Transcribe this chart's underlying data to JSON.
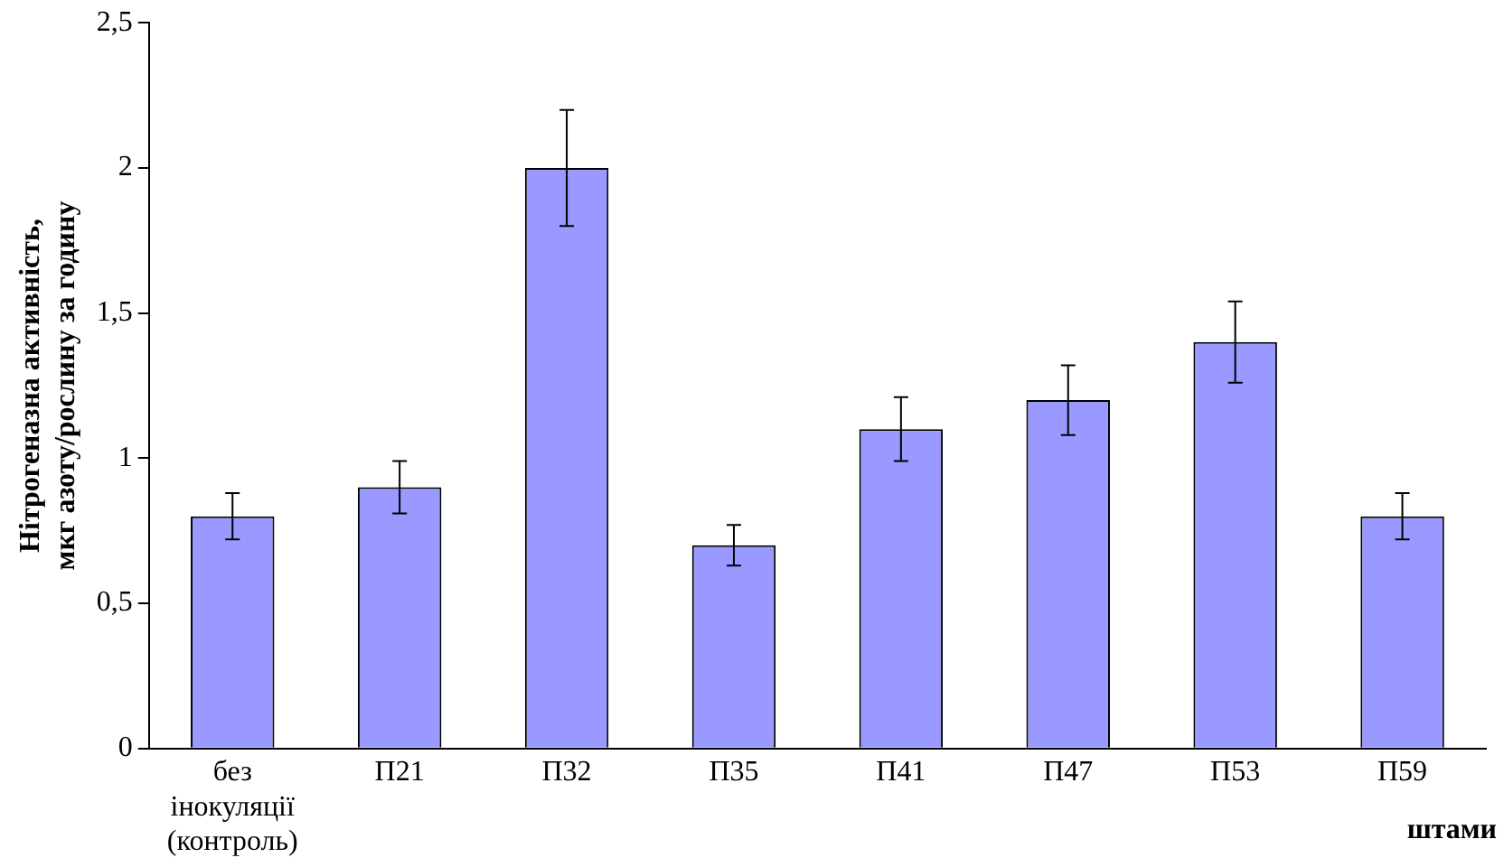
{
  "chart_data": {
    "type": "bar",
    "xlabel": "штами",
    "ylabel": "Нітрогеназна активність, мкг азоту/рослину за годину",
    "categories": [
      "без інокуляції (контроль)",
      "П21",
      "П32",
      "П35",
      "П41",
      "П47",
      "П53",
      "П59"
    ],
    "values": [
      0.8,
      0.9,
      2.0,
      0.7,
      1.1,
      1.2,
      1.4,
      0.8
    ],
    "errors": [
      0.08,
      0.09,
      0.2,
      0.07,
      0.11,
      0.12,
      0.14,
      0.08
    ],
    "color": "#9999ff",
    "ylim": [
      0,
      2.5
    ],
    "yticks": [
      0,
      {
        "value": 0.5,
        "label": "0,5"
      },
      1,
      {
        "value": 1.5,
        "label": "1,5"
      },
      2,
      {
        "value": 2.5,
        "label": "2,5"
      }
    ],
    "grid": false,
    "legend": false
  }
}
